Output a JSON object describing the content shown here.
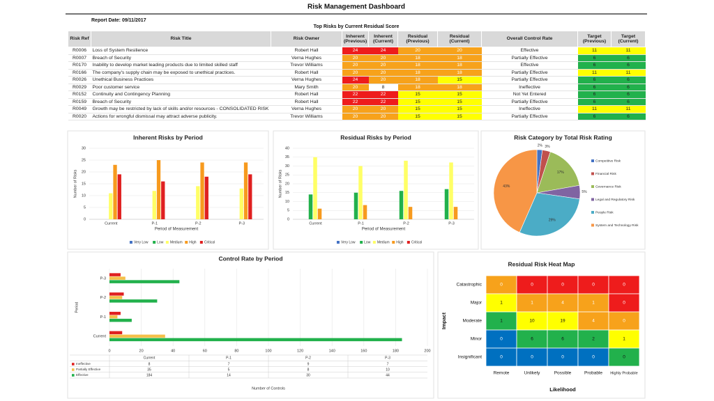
{
  "header": {
    "title": "Risk Management Dashboard",
    "report_date": "Report Date: 09/11/2017"
  },
  "table": {
    "title": "Top Risks by Current Residual Score",
    "columns": [
      "Risk Ref",
      "Risk Title",
      "Risk Owner",
      "Inherent (Previous)",
      "Inherent (Current)",
      "Residual (Previous)",
      "Residual (Current)",
      "Overall Control Rate",
      "Target (Previous)",
      "Target (Current)"
    ],
    "rows": [
      [
        "R0006",
        "Loss of System Resilience",
        "Robert Hall",
        24,
        24,
        20,
        20,
        "Effective",
        11,
        11
      ],
      [
        "R0007",
        "Breach of Security",
        "Verna Hughes",
        20,
        20,
        18,
        18,
        "Partially Effective",
        6,
        6
      ],
      [
        "R0170",
        "Inability to develop market leading products due to limited skilled staff",
        "Trevor Williams",
        20,
        20,
        18,
        18,
        "Effective",
        6,
        6
      ],
      [
        "R0166",
        "The company's supply chain may be exposed to unethical practices.",
        "Robert Hall",
        20,
        20,
        18,
        18,
        "Partially Effective",
        11,
        11
      ],
      [
        "R0026",
        "Unethical Business Practices",
        "Verna Hughes",
        24,
        20,
        18,
        15,
        "Partially Effective",
        6,
        6
      ],
      [
        "R0029",
        "Poor customer service",
        "Mary Smith",
        20,
        8,
        18,
        18,
        "Ineffective",
        6,
        6
      ],
      [
        "R0152",
        "Continuity and Contingency Planning",
        "Robert Hall",
        22,
        22,
        15,
        15,
        "Not Yet Entered",
        6,
        6
      ],
      [
        "R0159",
        "Breach of Security",
        "Robert Hall",
        22,
        22,
        15,
        15,
        "Partially Effective",
        6,
        6
      ],
      [
        "R0049",
        "Growth may be restricted by lack of skills and/or resources - CONSOLIDATED RISK",
        "Verna Hughes",
        20,
        20,
        15,
        15,
        "Ineffective",
        11,
        11
      ],
      [
        "R0020",
        "Actions for wrongful dismissal may attract adverse publicity.",
        "Trevor Williams",
        20,
        20,
        15,
        15,
        "Partially Effective",
        6,
        6
      ]
    ]
  },
  "chart_data": [
    {
      "type": "bar",
      "title": "Inherent Risks by Period",
      "categories": [
        "Current",
        "P-1",
        "P-2",
        "P-3"
      ],
      "series": [
        {
          "name": "Very Low",
          "color": "#4472c4",
          "values": [
            0,
            0,
            0,
            0
          ]
        },
        {
          "name": "Low",
          "color": "#22b14c",
          "values": [
            0,
            0,
            0,
            0
          ]
        },
        {
          "name": "Medium",
          "color": "#ffff66",
          "values": [
            11,
            12,
            14,
            13
          ]
        },
        {
          "name": "High",
          "color": "#f79a1e",
          "values": [
            23,
            25,
            24,
            24
          ]
        },
        {
          "name": "Critical",
          "color": "#e02020",
          "values": [
            19,
            16,
            18,
            19
          ]
        }
      ],
      "xlabel": "Period of Measurement",
      "ylabel": "Number of Risks",
      "ylim": [
        0,
        30
      ],
      "yticks": [
        0,
        5,
        10,
        15,
        20,
        25,
        30
      ],
      "grid": true,
      "legend": "bottom"
    },
    {
      "type": "bar",
      "title": "Residual Risks by Period",
      "categories": [
        "Current",
        "P-1",
        "P-2",
        "P-3"
      ],
      "series": [
        {
          "name": "Very Low",
          "color": "#4472c4",
          "values": [
            0,
            0,
            0,
            0
          ]
        },
        {
          "name": "Low",
          "color": "#22b14c",
          "values": [
            14,
            15,
            16,
            17
          ]
        },
        {
          "name": "Medium",
          "color": "#ffff66",
          "values": [
            35,
            30,
            33,
            32
          ]
        },
        {
          "name": "High",
          "color": "#f79a1e",
          "values": [
            6,
            8,
            7,
            7
          ]
        },
        {
          "name": "Critical",
          "color": "#e02020",
          "values": [
            0,
            0,
            0,
            0
          ]
        }
      ],
      "xlabel": "Period of Measurement",
      "ylabel": "Number of Risks",
      "ylim": [
        0,
        40
      ],
      "yticks": [
        0,
        5,
        10,
        15,
        20,
        25,
        30,
        35,
        40
      ],
      "grid": true,
      "legend": "bottom"
    },
    {
      "type": "pie",
      "title": "Risk Category by Total Risk Rating",
      "categories": [
        "Competitive Risk",
        "Financial Risk",
        "Governance Risk",
        "Legal and Regulatory Risk",
        "People Risk",
        "System and Technology Risk"
      ],
      "values": [
        2,
        3,
        17,
        5,
        29,
        43
      ],
      "value_labels": [
        "2%",
        "3%",
        "17%",
        "5%",
        "29%",
        "43%"
      ],
      "colors": [
        "#4472c4",
        "#c0504d",
        "#9bbb59",
        "#8064a2",
        "#4bacc6",
        "#f79646"
      ],
      "legend": "right"
    },
    {
      "type": "hbar",
      "title": "Control Rate by Period",
      "categories": [
        "Current",
        "P-1",
        "P-2",
        "P-3"
      ],
      "series": [
        {
          "name": "Ineffective",
          "color": "#e02020",
          "values": [
            8,
            7,
            9,
            7
          ]
        },
        {
          "name": "Partially Effective",
          "color": "#f4c04a",
          "values": [
            35,
            5,
            8,
            10
          ]
        },
        {
          "name": "Effective",
          "color": "#22b14c",
          "values": [
            184,
            14,
            30,
            44
          ]
        }
      ],
      "xlabel": "Number of Controls",
      "ylabel": "Period",
      "xlim": [
        0,
        200
      ],
      "xticks": [
        0,
        20,
        40,
        60,
        80,
        100,
        120,
        140,
        160,
        180,
        200
      ],
      "grid": true,
      "data_table": true
    },
    {
      "type": "heatmap",
      "title": "Residual Risk Heat Map",
      "rows": [
        "Catastrophic",
        "Major",
        "Moderate",
        "Minor",
        "Insignificant"
      ],
      "columns": [
        "Remote",
        "Unlikely",
        "Possible",
        "Probable",
        "Highly Probable"
      ],
      "values": [
        [
          0,
          0,
          0,
          0,
          0
        ],
        [
          1,
          1,
          4,
          1,
          0
        ],
        [
          1,
          10,
          19,
          4,
          0
        ],
        [
          0,
          6,
          6,
          2,
          1
        ],
        [
          0,
          0,
          0,
          0,
          0
        ]
      ],
      "cell_colors": [
        [
          "#f7a21b",
          "#ee1c1c",
          "#ee1c1c",
          "#ee1c1c",
          "#ee1c1c"
        ],
        [
          "#ffff00",
          "#f7a21b",
          "#f7a21b",
          "#f7a21b",
          "#ee1c1c"
        ],
        [
          "#22b14c",
          "#ffff00",
          "#ffff00",
          "#f7a21b",
          "#f7a21b"
        ],
        [
          "#0070c0",
          "#22b14c",
          "#22b14c",
          "#22b14c",
          "#ffff00"
        ],
        [
          "#0070c0",
          "#0070c0",
          "#0070c0",
          "#0070c0",
          "#22b14c"
        ]
      ],
      "xlabel": "Likelihood",
      "ylabel": "Impact"
    }
  ]
}
